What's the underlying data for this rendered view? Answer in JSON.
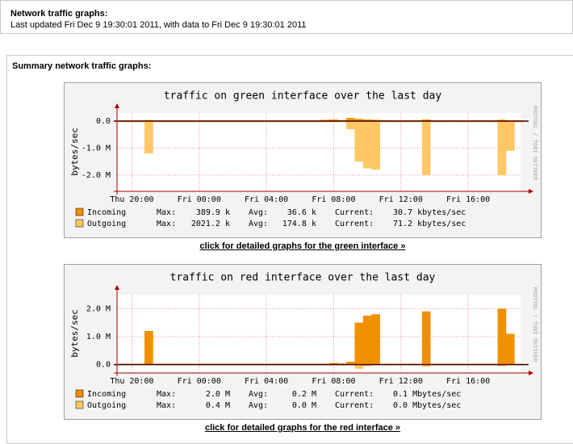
{
  "header": {
    "title": "Network traffic graphs:",
    "updated": "Last updated Fri Dec 9 19:30:01 2011, with data to Fri Dec 9 19:30:01 2011"
  },
  "section": {
    "title": "Summary network traffic graphs:",
    "links": [
      "click for detailed graphs for the green interface »",
      "click for detailed graphs for the red interface »"
    ]
  },
  "chart_data": [
    {
      "type": "area",
      "title": "traffic on green interface over the last day",
      "y_label": "bytes/sec",
      "watermark": "RRDTOOL / TOBI OETIKER",
      "x": [
        "Thu 19:30",
        "Thu 20:00",
        "Thu 20:30",
        "Thu 21:00",
        "Thu 21:30",
        "Thu 22:00",
        "Thu 22:30",
        "Thu 23:00",
        "Thu 23:30",
        "Fri 00:00",
        "Fri 00:30",
        "Fri 01:00",
        "Fri 01:30",
        "Fri 02:00",
        "Fri 02:30",
        "Fri 03:00",
        "Fri 03:30",
        "Fri 04:00",
        "Fri 04:30",
        "Fri 05:00",
        "Fri 05:30",
        "Fri 06:00",
        "Fri 06:30",
        "Fri 07:00",
        "Fri 07:30",
        "Fri 08:00",
        "Fri 08:30",
        "Fri 09:00",
        "Fri 09:30",
        "Fri 10:00",
        "Fri 10:30",
        "Fri 11:00",
        "Fri 11:30",
        "Fri 12:00",
        "Fri 12:30",
        "Fri 13:00",
        "Fri 13:30",
        "Fri 14:00",
        "Fri 14:30",
        "Fri 15:00",
        "Fri 15:30",
        "Fri 16:00",
        "Fri 16:30",
        "Fri 17:00",
        "Fri 17:30",
        "Fri 18:00",
        "Fri 18:30",
        "Fri 19:00"
      ],
      "xticks": [
        "Thu 20:00",
        "Fri 00:00",
        "Fri 04:00",
        "Fri 08:00",
        "Fri 12:00",
        "Fri 16:00"
      ],
      "ylim": [
        -2600000,
        300000
      ],
      "yticks": [
        {
          "value": 0,
          "label": "0.0"
        },
        {
          "value": -1000000,
          "label": "-1.0 M"
        },
        {
          "value": -2000000,
          "label": "-2.0 M"
        }
      ],
      "grid": true,
      "stat_labels": [
        "Max:",
        "Avg:",
        "Current:"
      ],
      "series": [
        {
          "name": "Incoming",
          "color": "#f09000",
          "max": "389.9 k",
          "avg": "36.6 k",
          "current": "30.7 kbytes/sec",
          "values": [
            30000,
            30000,
            30000,
            40000,
            30000,
            30000,
            30000,
            30000,
            30000,
            30000,
            30000,
            30000,
            30000,
            30000,
            30000,
            30000,
            30000,
            30000,
            30000,
            30000,
            30000,
            30000,
            30000,
            30000,
            50000,
            60000,
            40000,
            120000,
            80000,
            60000,
            50000,
            40000,
            30000,
            30000,
            30000,
            30000,
            60000,
            30000,
            30000,
            30000,
            30000,
            30000,
            30000,
            30000,
            30000,
            50000,
            30000,
            30000
          ]
        },
        {
          "name": "Outgoing",
          "color": "#ffc864",
          "max": "2021.2 k",
          "avg": "174.8 k",
          "current": "71.2 kbytes/sec",
          "values": [
            -40000,
            -40000,
            -40000,
            -1200000,
            -40000,
            -40000,
            -40000,
            -40000,
            -40000,
            -40000,
            -40000,
            -40000,
            -40000,
            -40000,
            -40000,
            -40000,
            -40000,
            -40000,
            -40000,
            -40000,
            -40000,
            -40000,
            -40000,
            -40000,
            -40000,
            -40000,
            -40000,
            -300000,
            -1500000,
            -1750000,
            -1800000,
            -40000,
            -40000,
            -40000,
            -40000,
            -40000,
            -2000000,
            -40000,
            -40000,
            -40000,
            -40000,
            -40000,
            -40000,
            -40000,
            -40000,
            -2000000,
            -1100000,
            -40000
          ]
        }
      ]
    },
    {
      "type": "area",
      "title": "traffic on red interface over the last day",
      "y_label": "bytes/sec",
      "watermark": "RRDTOOL / TOBI OETIKER",
      "x": [
        "Thu 19:30",
        "Thu 20:00",
        "Thu 20:30",
        "Thu 21:00",
        "Thu 21:30",
        "Thu 22:00",
        "Thu 22:30",
        "Thu 23:00",
        "Thu 23:30",
        "Fri 00:00",
        "Fri 00:30",
        "Fri 01:00",
        "Fri 01:30",
        "Fri 02:00",
        "Fri 02:30",
        "Fri 03:00",
        "Fri 03:30",
        "Fri 04:00",
        "Fri 04:30",
        "Fri 05:00",
        "Fri 05:30",
        "Fri 06:00",
        "Fri 06:30",
        "Fri 07:00",
        "Fri 07:30",
        "Fri 08:00",
        "Fri 08:30",
        "Fri 09:00",
        "Fri 09:30",
        "Fri 10:00",
        "Fri 10:30",
        "Fri 11:00",
        "Fri 11:30",
        "Fri 12:00",
        "Fri 12:30",
        "Fri 13:00",
        "Fri 13:30",
        "Fri 14:00",
        "Fri 14:30",
        "Fri 15:00",
        "Fri 15:30",
        "Fri 16:00",
        "Fri 16:30",
        "Fri 17:00",
        "Fri 17:30",
        "Fri 18:00",
        "Fri 18:30",
        "Fri 19:00"
      ],
      "xticks": [
        "Thu 20:00",
        "Fri 00:00",
        "Fri 04:00",
        "Fri 08:00",
        "Fri 12:00",
        "Fri 16:00"
      ],
      "ylim": [
        -300000,
        2500000
      ],
      "yticks": [
        {
          "value": 0,
          "label": "0.0"
        },
        {
          "value": 1000000,
          "label": "1.0 M"
        },
        {
          "value": 2000000,
          "label": "2.0 M"
        }
      ],
      "grid": true,
      "stat_labels": [
        "Max:",
        "Avg:",
        "Current:"
      ],
      "series": [
        {
          "name": "Incoming",
          "color": "#f09000",
          "max": "2.0 M",
          "avg": "0.2 M",
          "current": "0.1 Mbytes/sec",
          "values": [
            30000,
            30000,
            30000,
            1200000,
            30000,
            30000,
            30000,
            30000,
            30000,
            30000,
            30000,
            30000,
            30000,
            30000,
            30000,
            30000,
            30000,
            30000,
            30000,
            30000,
            30000,
            30000,
            30000,
            30000,
            30000,
            60000,
            40000,
            100000,
            1500000,
            1750000,
            1800000,
            30000,
            30000,
            30000,
            30000,
            30000,
            1900000,
            30000,
            30000,
            30000,
            30000,
            30000,
            30000,
            30000,
            30000,
            2000000,
            1100000,
            30000
          ]
        },
        {
          "name": "Outgoing",
          "color": "#ffc864",
          "max": "0.4 M",
          "avg": "0.0 M",
          "current": "0.0 Mbytes/sec",
          "values": [
            -20000,
            -20000,
            -20000,
            -20000,
            -20000,
            -20000,
            -20000,
            -20000,
            -20000,
            -20000,
            -20000,
            -20000,
            -20000,
            -20000,
            -20000,
            -20000,
            -20000,
            -20000,
            -20000,
            -20000,
            -20000,
            -20000,
            -20000,
            -20000,
            -20000,
            -20000,
            -20000,
            -20000,
            -150000,
            -60000,
            -20000,
            -20000,
            -20000,
            -20000,
            -20000,
            -20000,
            -80000,
            -20000,
            -20000,
            -20000,
            -20000,
            -20000,
            -20000,
            -20000,
            -20000,
            -60000,
            -20000,
            -20000
          ]
        }
      ]
    }
  ]
}
